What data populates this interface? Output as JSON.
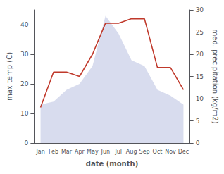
{
  "chart_data": {
    "type": "line",
    "xlabel": "date (month)",
    "ylabel": "max temp (C)",
    "y2label": "med. precipitation (kg/m2)",
    "categories": [
      "Jan",
      "Feb",
      "Mar",
      "Apr",
      "May",
      "Jun",
      "Jul",
      "Aug",
      "Sep",
      "Oct",
      "Nov",
      "Dec"
    ],
    "series": [
      {
        "type": "area",
        "color": "#b8c0e0",
        "values": [
          13,
          14,
          18,
          20,
          26,
          43,
          37,
          28,
          26,
          18,
          16,
          13
        ]
      },
      {
        "type": "line",
        "color": "#c0392b",
        "axis": "y2",
        "values": [
          8,
          16,
          16,
          15,
          20,
          27,
          27,
          28,
          28,
          17,
          17,
          12
        ]
      }
    ],
    "ylim": [
      0,
      45
    ],
    "yticks": [
      0,
      10,
      20,
      30,
      40
    ],
    "y2lim": [
      0,
      30
    ],
    "y2ticks": [
      0,
      5,
      10,
      15,
      20,
      25,
      30
    ],
    "grid": false
  }
}
